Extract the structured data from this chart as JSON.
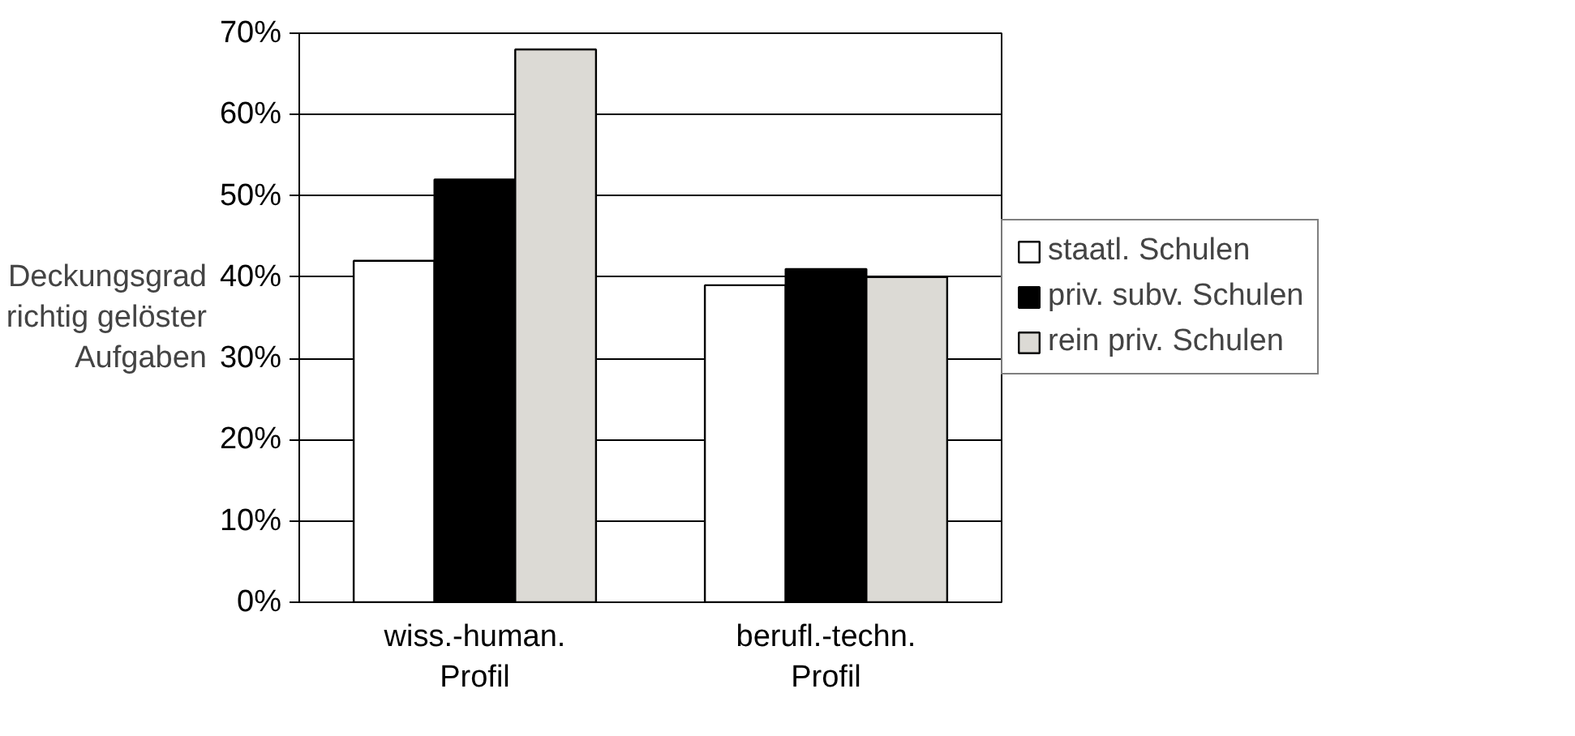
{
  "chart_data": {
    "type": "bar",
    "ylabel": "Deckungsgrad\nrichtig gelöster\nAufgaben",
    "categories": [
      "wiss.-human.\nProfil",
      "berufl.-techn.\nProfil"
    ],
    "series": [
      {
        "name": "staatl. Schulen",
        "color": "#ffffff",
        "values": [
          42,
          39
        ]
      },
      {
        "name": "priv. subv. Schulen",
        "color": "#000000",
        "values": [
          52,
          41
        ]
      },
      {
        "name": "rein priv. Schulen",
        "color": "#dcdad5",
        "values": [
          68,
          40
        ]
      }
    ],
    "ylim": [
      0,
      70
    ],
    "yticks": [
      {
        "value": 0,
        "label": "0%"
      },
      {
        "value": 10,
        "label": "10%"
      },
      {
        "value": 20,
        "label": "20%"
      },
      {
        "value": 30,
        "label": "30%"
      },
      {
        "value": 40,
        "label": "40%"
      },
      {
        "value": 50,
        "label": "50%"
      },
      {
        "value": 60,
        "label": "60%"
      },
      {
        "value": 70,
        "label": "70%"
      }
    ],
    "grid": "y",
    "legend": "right"
  }
}
